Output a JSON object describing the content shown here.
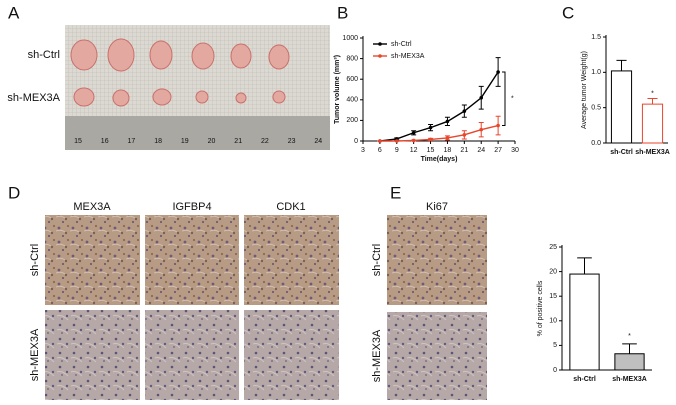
{
  "panel_labels": [
    "A",
    "B",
    "C",
    "D",
    "E"
  ],
  "photo_a": {
    "rows": [
      "sh-Ctrl",
      "sh-MEX3A"
    ],
    "ruler": [
      "15",
      "16",
      "17",
      "18",
      "19",
      "20",
      "21",
      "22",
      "23",
      "24"
    ]
  },
  "ihc_d": {
    "columns": [
      "MEX3A",
      "IGFBP4",
      "CDK1"
    ],
    "rows": [
      "sh-Ctrl",
      "sh-MEX3A"
    ]
  },
  "ihc_e": {
    "columns": [
      "Ki67"
    ],
    "rows": [
      "sh-Ctrl",
      "sh-MEX3A"
    ]
  },
  "chart_data": [
    {
      "type": "line",
      "xlabel": "Time(days)",
      "ylabel": "Tumor volume (mm³)",
      "x": [
        6,
        9,
        12,
        15,
        18,
        21,
        24,
        27
      ],
      "xlim": [
        3,
        30
      ],
      "xticks": [
        3,
        6,
        9,
        12,
        15,
        18,
        21,
        24,
        27,
        30
      ],
      "ylim": [
        0,
        1000
      ],
      "yticks": [
        0,
        200,
        400,
        600,
        800,
        1000
      ],
      "legend": "top-left",
      "annotation": "*",
      "series": [
        {
          "name": "sh-Ctrl",
          "color": "#000000",
          "values": [
            0,
            20,
            80,
            130,
            190,
            290,
            420,
            670
          ],
          "errors": [
            0,
            10,
            20,
            30,
            40,
            60,
            110,
            140
          ]
        },
        {
          "name": "sh-MEX3A",
          "color": "#e8462d",
          "values": [
            0,
            0,
            5,
            15,
            30,
            60,
            110,
            150
          ],
          "errors": [
            0,
            0,
            5,
            10,
            20,
            40,
            70,
            90
          ]
        }
      ]
    },
    {
      "type": "bar",
      "ylabel": "Average tumor Weight(g)",
      "categories": [
        "sh-Ctrl",
        "sh-MEX3A"
      ],
      "values": [
        1.02,
        0.55
      ],
      "errors": [
        0.15,
        0.08
      ],
      "colors": [
        "#ffffff",
        "#ffffff"
      ],
      "edge_colors": [
        "#000000",
        "#e8462d"
      ],
      "ylim": [
        0,
        1.5
      ],
      "yticks": [
        {
          "value": 0,
          "label": "0.0"
        },
        0.5,
        {
          "value": 1,
          "label": "1.0"
        },
        1.5
      ],
      "annotation": "*"
    },
    {
      "type": "bar",
      "ylabel": "% of positive cells",
      "categories": [
        "sh-Ctrl",
        "sh-MEX3A"
      ],
      "values": [
        19.5,
        3.3
      ],
      "errors": [
        3.3,
        2
      ],
      "colors": [
        "#ffffff",
        "#bfbfbf"
      ],
      "edge_colors": [
        "#000000",
        "#000000"
      ],
      "ylim": [
        0,
        25
      ],
      "yticks": [
        0,
        5,
        10,
        15,
        20,
        25
      ],
      "annotation": "*"
    }
  ]
}
